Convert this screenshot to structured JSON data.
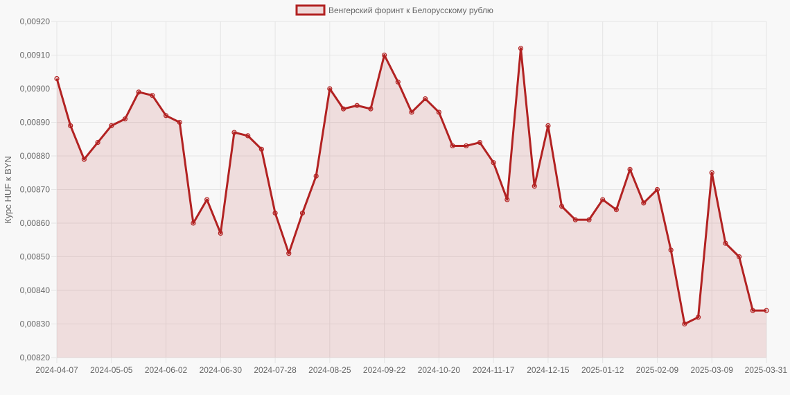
{
  "colors": {
    "line": "#b22222",
    "fill": "rgba(178,34,34,0.12)",
    "legend_fill": "rgba(178,34,34,0.15)",
    "grid": "#e5e5e5",
    "text": "#666666",
    "background": "#f8f8f8"
  },
  "chart_data": {
    "type": "line",
    "title": "",
    "xlabel": "",
    "ylabel": "Курс HUF к BYN",
    "legend_position": "top-center",
    "grid": true,
    "ylim": [
      0.0082,
      0.0092
    ],
    "y_ticks": [
      "0,00820",
      "0,00830",
      "0,00840",
      "0,00850",
      "0,00860",
      "0,00870",
      "0,00880",
      "0,00890",
      "0,00900",
      "0,00910",
      "0,00920"
    ],
    "x_ticks": [
      "2024-04-07",
      "2024-05-05",
      "2024-06-02",
      "2024-06-30",
      "2024-07-28",
      "2024-08-25",
      "2024-09-22",
      "2024-10-20",
      "2024-11-17",
      "2024-12-15",
      "2025-01-12",
      "2025-02-09",
      "2025-03-09",
      "2025-03-31"
    ],
    "x_tick_points": [
      0,
      4,
      8,
      12,
      16,
      20,
      24,
      28,
      32,
      36,
      40,
      44,
      48,
      52
    ],
    "series": [
      {
        "name": "Венгерский форинт к Белорусскому рублю",
        "values": [
          0.00903,
          0.00889,
          0.00879,
          0.00884,
          0.00889,
          0.00891,
          0.00899,
          0.00898,
          0.00892,
          0.0089,
          0.0086,
          0.00867,
          0.00857,
          0.00887,
          0.00886,
          0.00882,
          0.00863,
          0.00851,
          0.00863,
          0.00874,
          0.009,
          0.00894,
          0.00895,
          0.00894,
          0.0091,
          0.00902,
          0.00893,
          0.00897,
          0.00893,
          0.00883,
          0.00883,
          0.00884,
          0.00878,
          0.00867,
          0.00912,
          0.00871,
          0.00889,
          0.00865,
          0.00861,
          0.00861,
          0.00867,
          0.00864,
          0.00876,
          0.00866,
          0.0087,
          0.00852,
          0.0083,
          0.00832,
          0.00875,
          0.00854,
          0.0085,
          0.00834,
          0.00834
        ]
      }
    ]
  }
}
